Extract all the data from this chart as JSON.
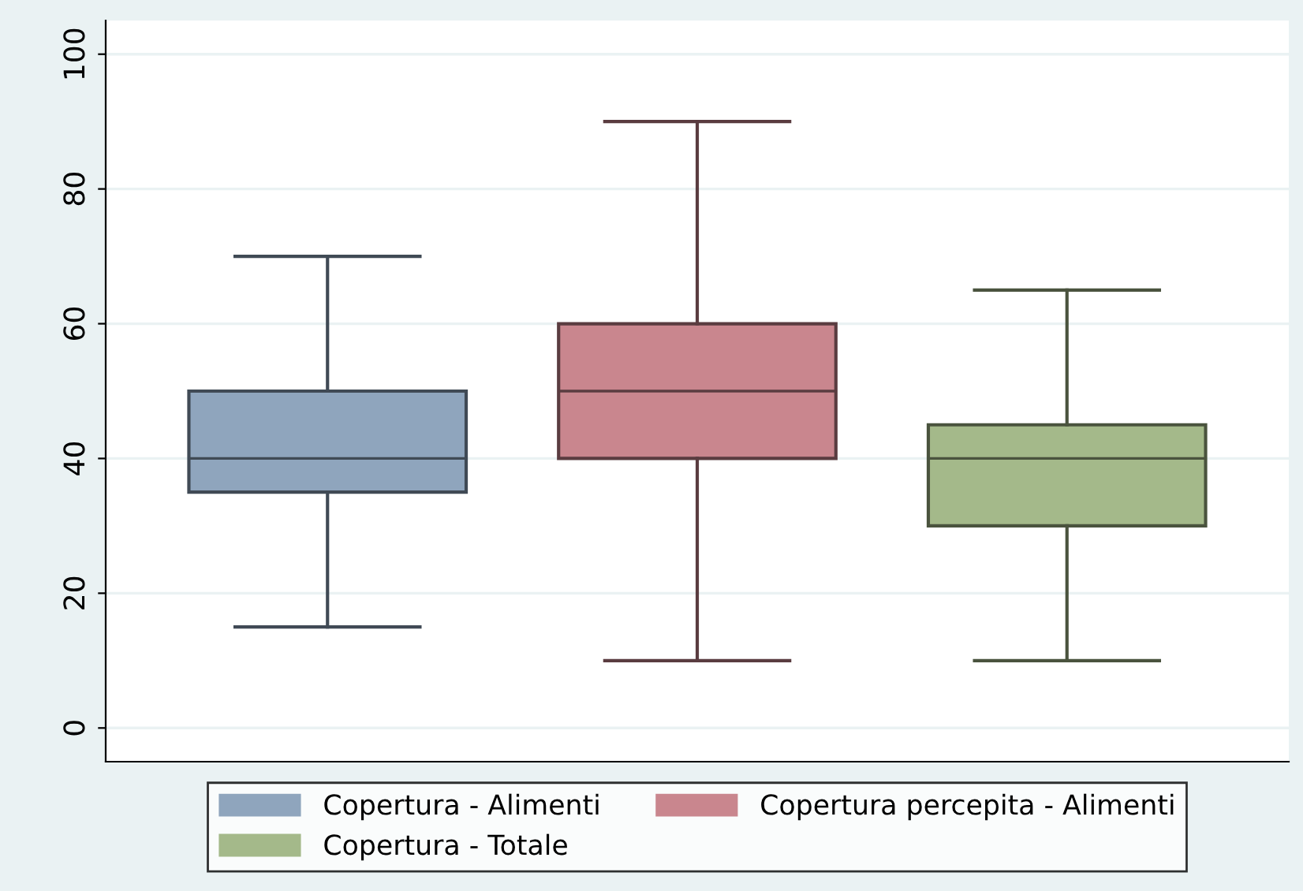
{
  "chart_data": {
    "type": "box",
    "categories": [
      null,
      null,
      null
    ],
    "series": [
      {
        "name": "Copertura - Alimenti",
        "color": "#8fa5bd",
        "boxes": [
          {
            "low": 15,
            "q1": 35,
            "median": 40,
            "q3": 50,
            "high": 70
          },
          null,
          null
        ]
      },
      {
        "name": "Copertura percepita - Alimenti",
        "color": "#c9868e",
        "boxes": [
          null,
          {
            "low": 10,
            "q1": 40,
            "median": 50,
            "q3": 60,
            "high": 90
          },
          null
        ]
      },
      {
        "name": "Copertura - Totale",
        "color": "#a4b98a",
        "boxes": [
          null,
          null,
          {
            "low": 10,
            "q1": 30,
            "median": 40,
            "q3": 45,
            "high": 65
          }
        ]
      }
    ],
    "ylim": [
      -5,
      105
    ],
    "yticks": [
      0,
      20,
      40,
      60,
      80,
      100
    ],
    "grid": "y",
    "legend": "bottom"
  }
}
